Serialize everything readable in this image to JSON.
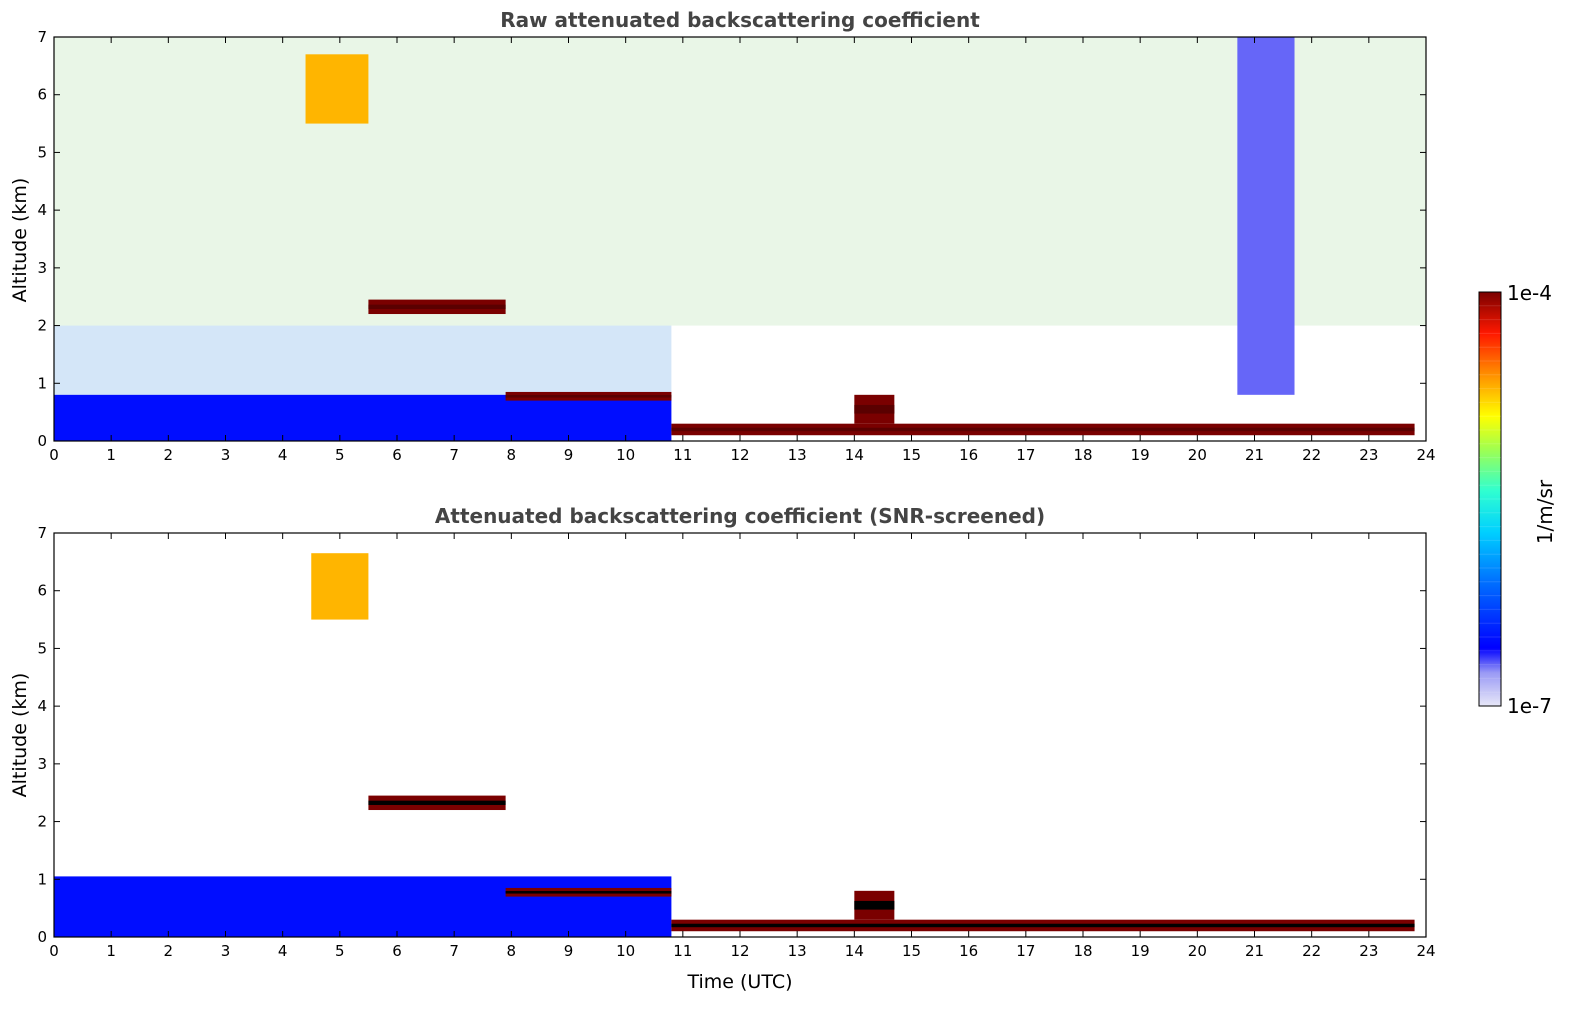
{
  "chart_data": [
    {
      "type": "heatmap",
      "title": "Raw attenuated backscattering coefficient",
      "xlabel": "",
      "ylabel": "Altitude (km)",
      "xlim": [
        0,
        24
      ],
      "ylim": [
        0,
        7
      ],
      "xticks": [
        "0",
        "1",
        "2",
        "3",
        "4",
        "5",
        "6",
        "7",
        "8",
        "9",
        "10",
        "11",
        "12",
        "13",
        "14",
        "15",
        "16",
        "17",
        "18",
        "19",
        "20",
        "21",
        "22",
        "23",
        "24"
      ],
      "yticks": [
        "0",
        "1",
        "2",
        "3",
        "4",
        "5",
        "6",
        "7"
      ],
      "colorscale": "log",
      "features": [
        {
          "name": "aerosol boundary layer",
          "t_start": 0,
          "t_end": 10.8,
          "alt_bottom": 0,
          "alt_top": 0.8,
          "value": 3e-07
        },
        {
          "name": "cloud layer",
          "t_start": 5.5,
          "t_end": 7.9,
          "alt_bottom": 2.2,
          "alt_top": 2.45,
          "value": 0.0001
        },
        {
          "name": "cloud layer",
          "t_start": 7.9,
          "t_end": 10.8,
          "alt_bottom": 0.7,
          "alt_top": 0.85,
          "value": 0.0001
        },
        {
          "name": "cloud layer",
          "t_start": 10.8,
          "t_end": 23.8,
          "alt_bottom": 0.1,
          "alt_top": 0.3,
          "value": 0.0001
        },
        {
          "name": "cirrus",
          "t_start": 4.4,
          "t_end": 5.5,
          "alt_bottom": 5.5,
          "alt_top": 6.7,
          "value": 2e-05
        },
        {
          "name": "low-signal column",
          "t_start": 20.7,
          "t_end": 21.7,
          "alt_bottom": 0.8,
          "alt_top": 7,
          "value": 2e-07
        },
        {
          "name": "low cloud",
          "t_start": 14.0,
          "t_end": 14.7,
          "alt_bottom": 0.3,
          "alt_top": 0.8,
          "value": 0.0001
        }
      ]
    },
    {
      "type": "heatmap",
      "title": "Attenuated backscattering coefficient (SNR-screened)",
      "xlabel": "Time (UTC)",
      "ylabel": "Altitude (km)",
      "xlim": [
        0,
        24
      ],
      "ylim": [
        0,
        7
      ],
      "xticks": [
        "0",
        "1",
        "2",
        "3",
        "4",
        "5",
        "6",
        "7",
        "8",
        "9",
        "10",
        "11",
        "12",
        "13",
        "14",
        "15",
        "16",
        "17",
        "18",
        "19",
        "20",
        "21",
        "22",
        "23",
        "24"
      ],
      "yticks": [
        "0",
        "1",
        "2",
        "3",
        "4",
        "5",
        "6",
        "7"
      ],
      "colorscale": "log",
      "features": [
        {
          "name": "aerosol boundary layer",
          "t_start": 0,
          "t_end": 10.8,
          "alt_bottom": 0,
          "alt_top": 1.05,
          "value": 3e-07
        },
        {
          "name": "cloud layer",
          "t_start": 5.5,
          "t_end": 7.9,
          "alt_bottom": 2.2,
          "alt_top": 2.45,
          "value": 0.0001
        },
        {
          "name": "cloud layer",
          "t_start": 7.9,
          "t_end": 10.8,
          "alt_bottom": 0.7,
          "alt_top": 0.85,
          "value": 0.0001
        },
        {
          "name": "cloud layer",
          "t_start": 10.8,
          "t_end": 23.8,
          "alt_bottom": 0.1,
          "alt_top": 0.3,
          "value": 0.0001
        },
        {
          "name": "cirrus",
          "t_start": 4.5,
          "t_end": 5.5,
          "alt_bottom": 5.5,
          "alt_top": 6.65,
          "value": 2e-05
        },
        {
          "name": "low cloud",
          "t_start": 14.0,
          "t_end": 14.7,
          "alt_bottom": 0.3,
          "alt_top": 0.8,
          "value": 0.0001
        }
      ]
    }
  ],
  "colorbar": {
    "label": "1/m/sr",
    "max_label": "1e-4",
    "min_label": "1e-7",
    "scale": "log",
    "colors": [
      "#e6e6f5",
      "#b4b4f0",
      "#7878ff",
      "#0000ff",
      "#0060ff",
      "#00c8ff",
      "#40ffc0",
      "#c0ff40",
      "#ffe000",
      "#ff8000",
      "#ff2000",
      "#a00000",
      "#700000"
    ]
  }
}
